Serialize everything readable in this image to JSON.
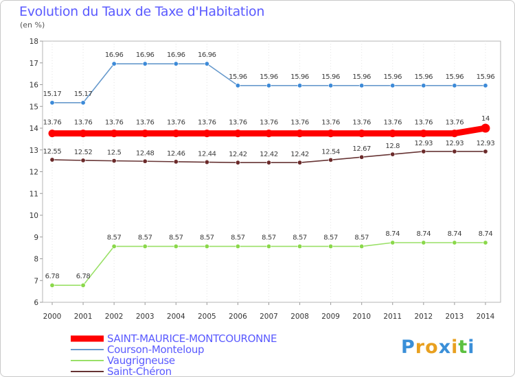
{
  "chart_data": {
    "type": "line",
    "title": "Evolution du Taux de Taxe d'Habitation",
    "ylabel": "(en %)",
    "xlabel": "",
    "x": [
      "2000",
      "2001",
      "2002",
      "2003",
      "2004",
      "2005",
      "2006",
      "2007",
      "2008",
      "2009",
      "2010",
      "2011",
      "2012",
      "2013",
      "2014"
    ],
    "ylim": [
      6,
      18
    ],
    "yticks": [
      "6",
      "7",
      "8",
      "9",
      "10",
      "11",
      "12",
      "13",
      "14",
      "15",
      "16",
      "17",
      "18"
    ],
    "grid": true,
    "legend_position": "bottom-left",
    "series": [
      {
        "name": "SAINT-MAURICE-MONTCOURONNE",
        "color": "#ff0000",
        "values": [
          13.76,
          13.76,
          13.76,
          13.76,
          13.76,
          13.76,
          13.76,
          13.76,
          13.76,
          13.76,
          13.76,
          13.76,
          13.76,
          13.76,
          14
        ],
        "labels": [
          "13.76",
          "13.76",
          "13.76",
          "13.76",
          "13.76",
          "13.76",
          "13.76",
          "13.76",
          "13.76",
          "13.76",
          "13.76",
          "13.76",
          "13.76",
          "13.76",
          "14"
        ]
      },
      {
        "name": "Courson-Monteloup",
        "color": "#6699cc",
        "marker_color": "#3c8ad8",
        "values": [
          15.17,
          15.17,
          16.96,
          16.96,
          16.96,
          16.96,
          15.96,
          15.96,
          15.96,
          15.96,
          15.96,
          15.96,
          15.96,
          15.96,
          15.96
        ],
        "labels": [
          "15.17",
          "15.17",
          "16.96",
          "16.96",
          "16.96",
          "16.96",
          "15.96",
          "15.96",
          "15.96",
          "15.96",
          "15.96",
          "15.96",
          "15.96",
          "15.96",
          "15.96"
        ]
      },
      {
        "name": "Vaugrigneuse",
        "color": "#99e066",
        "marker_color": "#8ad84a",
        "values": [
          6.78,
          6.78,
          8.57,
          8.57,
          8.57,
          8.57,
          8.57,
          8.57,
          8.57,
          8.57,
          8.57,
          8.74,
          8.74,
          8.74,
          8.74
        ],
        "labels": [
          "6.78",
          "6.78",
          "8.57",
          "8.57",
          "8.57",
          "8.57",
          "8.57",
          "8.57",
          "8.57",
          "8.57",
          "8.57",
          "8.74",
          "8.74",
          "8.74",
          "8.74"
        ]
      },
      {
        "name": "Saint-Chéron",
        "color": "#663333",
        "marker_color": "#6b2a2a",
        "values": [
          12.55,
          12.52,
          12.5,
          12.48,
          12.46,
          12.44,
          12.42,
          12.42,
          12.42,
          12.54,
          12.67,
          12.8,
          12.93,
          12.93,
          12.93
        ],
        "labels": [
          "12.55",
          "12.52",
          "12.5",
          "12.48",
          "12.46",
          "12.44",
          "12.42",
          "12.42",
          "12.42",
          "12.54",
          "12.67",
          "12.8",
          "12.93",
          "12.93",
          "12.93"
        ]
      }
    ]
  },
  "brand": {
    "letters": [
      "P",
      "r",
      "o",
      "x",
      "i",
      "t",
      "i"
    ],
    "colors": [
      "#3a8fd8",
      "#e8a020",
      "#e8a020",
      "#3a8fd8",
      "#e8a020",
      "#5cc040",
      "#3a8fd8"
    ]
  }
}
